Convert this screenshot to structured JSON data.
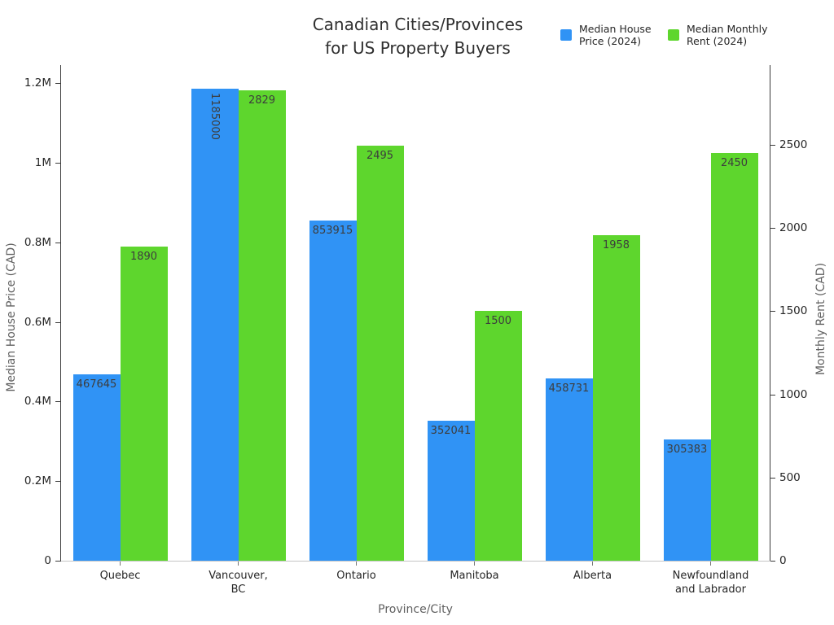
{
  "title": {
    "line1": "Canadian Cities/Provinces",
    "line2": "for US Property Buyers"
  },
  "legend": [
    {
      "label": "Median House\nPrice (2024)",
      "color": "#3093f5"
    },
    {
      "label": "Median Monthly\nRent (2024)",
      "color": "#5ed62d"
    }
  ],
  "axis_titles": {
    "left": "Median House Price (CAD)",
    "right": "Monthly Rent (CAD)",
    "bottom": "Province/City"
  },
  "chart_data": {
    "type": "bar",
    "title": "Canadian Cities/Provinces for US Property Buyers",
    "xlabel": "Province/City",
    "categories": [
      "Quebec",
      "Vancouver,\nBC",
      "Ontario",
      "Manitoba",
      "Alberta",
      "Newfoundland\nand Labrador"
    ],
    "series": [
      {
        "name": "Median House Price (2024)",
        "axis": "left",
        "color": "#3093f5",
        "values": [
          467645,
          1185000,
          853915,
          352041,
          458731,
          305383
        ],
        "value_labels": [
          "467645",
          "1185000",
          "853915",
          "352041",
          "458731",
          "305383"
        ],
        "vertical_label_indices": [
          1
        ]
      },
      {
        "name": "Median Monthly Rent (2024)",
        "axis": "right",
        "color": "#5ed62d",
        "values": [
          1890,
          2829,
          2495,
          1500,
          1958,
          2450
        ],
        "value_labels": [
          "1890",
          "2829",
          "2495",
          "1500",
          "1958",
          "2450"
        ],
        "vertical_label_indices": []
      }
    ],
    "left_axis": {
      "label": "Median House Price (CAD)",
      "tick_labels": [
        "0",
        "0.2M",
        "0.4M",
        "0.6M",
        "0.8M",
        "1M",
        "1.2M"
      ],
      "tick_values": [
        0,
        200000,
        400000,
        600000,
        800000,
        1000000,
        1200000
      ],
      "range": [
        0,
        1245000
      ]
    },
    "right_axis": {
      "label": "Monthly Rent (CAD)",
      "tick_labels": [
        "0",
        "500",
        "1000",
        "1500",
        "2000",
        "2500"
      ],
      "tick_values": [
        0,
        500,
        1000,
        1500,
        2000,
        2500
      ],
      "range": [
        0,
        2980
      ]
    },
    "grid": false,
    "legend_position": "top-right"
  }
}
